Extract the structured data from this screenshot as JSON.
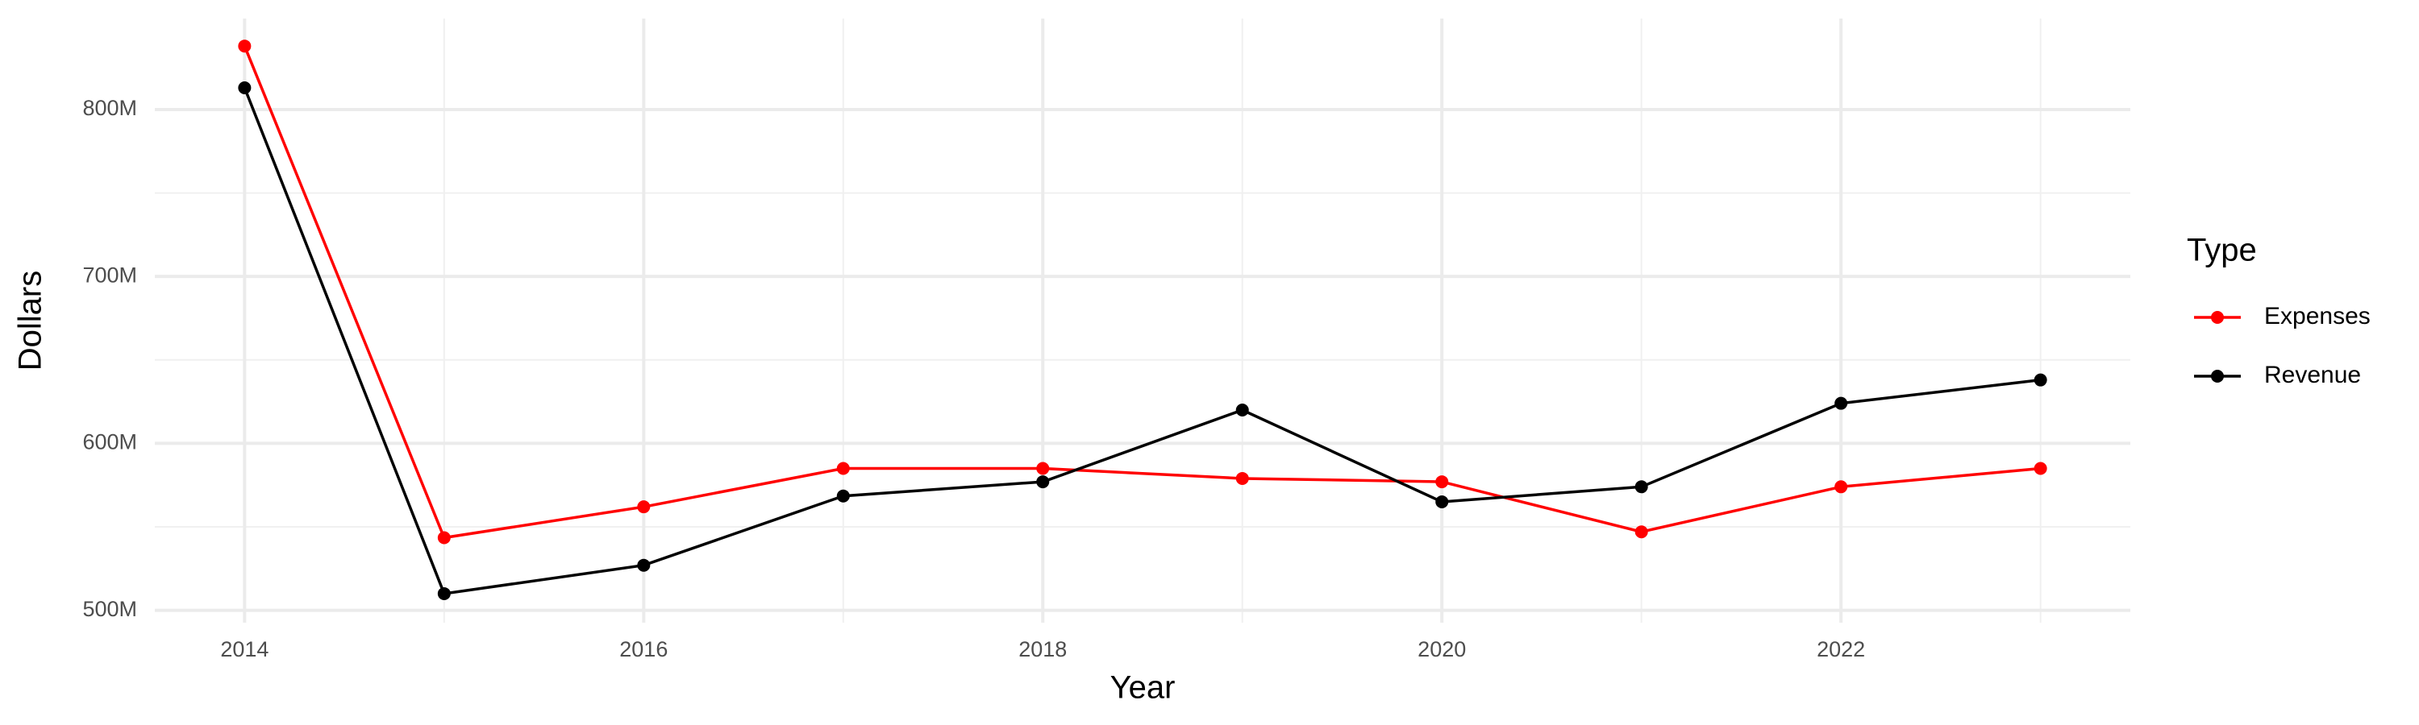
{
  "chart_data": {
    "type": "line",
    "x_label": "Year",
    "y_label": "Dollars",
    "legend_title": "Type",
    "x": [
      2014,
      2015,
      2016,
      2017,
      2018,
      2019,
      2020,
      2021,
      2022,
      2023
    ],
    "series": [
      {
        "name": "Expenses",
        "color": "#ff0000",
        "values": [
          838,
          543.5,
          562,
          585,
          585,
          579,
          577,
          547,
          574,
          585
        ]
      },
      {
        "name": "Revenue",
        "color": "#000000",
        "values": [
          813,
          510,
          527,
          568.5,
          577,
          620,
          565,
          574,
          624,
          638
        ]
      }
    ],
    "xlim": [
      2013.55,
      2023.45
    ],
    "xticks": [
      2014,
      2016,
      2018,
      2020,
      2022
    ],
    "xminor_ticks": [
      2015,
      2017,
      2019,
      2021,
      2023
    ],
    "ylim": [
      492.6,
      854.5
    ],
    "yticks": [
      {
        "value": 500,
        "label": "500M"
      },
      {
        "value": 600,
        "label": "600M"
      },
      {
        "value": 700,
        "label": "700M"
      },
      {
        "value": 800,
        "label": "800M"
      }
    ],
    "yminor_ticks": [
      550,
      650,
      750
    ],
    "grid": true,
    "legend_position": "right"
  }
}
